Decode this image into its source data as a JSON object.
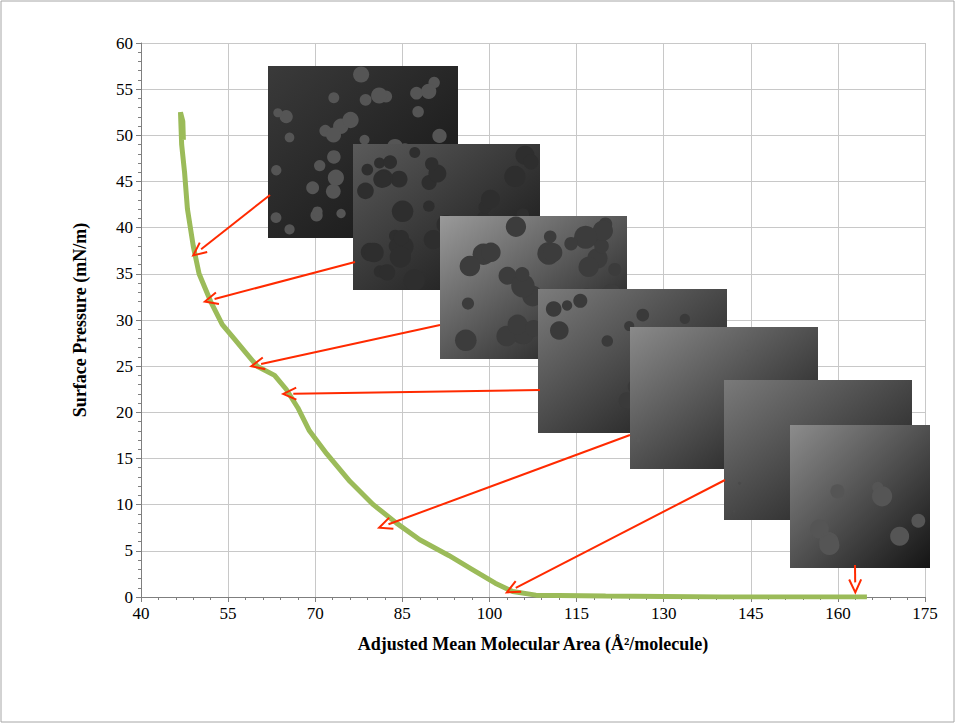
{
  "chart_data": {
    "type": "line",
    "x_label": "Adjusted Mean Molecular Area (Å²/molecule)",
    "y_label": "Surface Pressure (mN/m)",
    "x": [
      165,
      140,
      120,
      108,
      104,
      101,
      97,
      93,
      88,
      84,
      80,
      76,
      72,
      69,
      67,
      65,
      63,
      60,
      58,
      56,
      54,
      52,
      50,
      49,
      48,
      47.5,
      47,
      46.8,
      47.2,
      47.3
    ],
    "values": [
      0,
      0,
      0.1,
      0.2,
      0.6,
      1.5,
      3,
      4.5,
      6.2,
      8,
      10,
      12.5,
      15.5,
      18,
      20.5,
      22.5,
      24,
      25,
      26.5,
      28,
      29.5,
      32,
      35,
      38,
      42,
      46,
      49,
      52.5,
      51.5,
      49.5
    ],
    "color": "#9bbb59",
    "marker": "none",
    "xlim": [
      40,
      175
    ],
    "xticks": [
      40,
      55,
      70,
      85,
      100,
      115,
      130,
      145,
      160,
      175
    ],
    "ylim": [
      0,
      60
    ],
    "yticks": [
      0,
      5,
      10,
      15,
      20,
      25,
      30,
      35,
      40,
      45,
      50,
      55,
      60
    ],
    "grid": true,
    "arrow_targets": {
      "x": [
        49,
        51,
        59,
        64.5,
        81,
        103,
        163
      ],
      "y": [
        37,
        32,
        25,
        22,
        7.5,
        0.5,
        0.5
      ]
    }
  }
}
